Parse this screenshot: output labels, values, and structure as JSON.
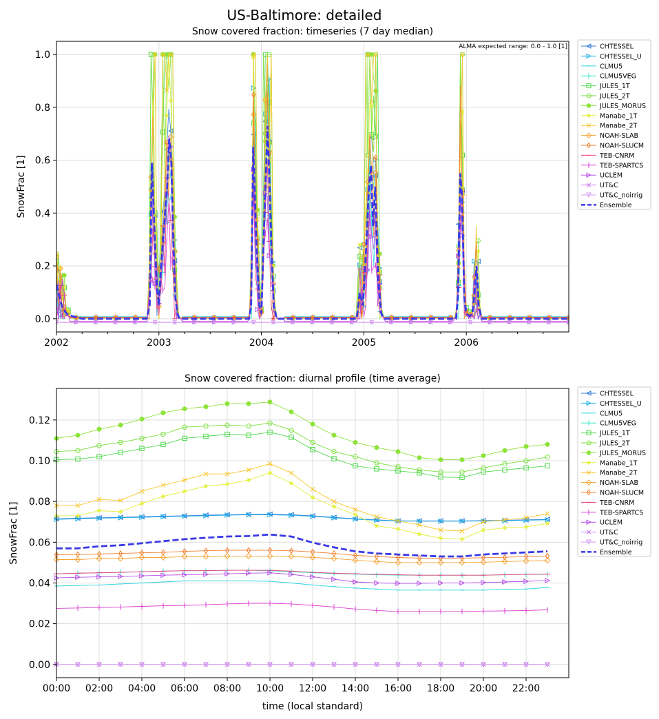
{
  "suptitle": "US-Baltimore: detailed",
  "legend_entries": [
    {
      "name": "CHTESSEL",
      "color": "#2f7ad8",
      "marker": "tri-left"
    },
    {
      "name": "CHTESSEL_U",
      "color": "#1fb0e6",
      "marker": "tri-right"
    },
    {
      "name": "CLMU5",
      "color": "#27d3e0",
      "marker": "dash"
    },
    {
      "name": "CLMU5VEG",
      "color": "#33e7c9",
      "marker": "vline"
    },
    {
      "name": "JULES_1T",
      "color": "#4bd84a",
      "marker": "square"
    },
    {
      "name": "JULES_2T",
      "color": "#79df3c",
      "marker": "circle"
    },
    {
      "name": "JULES_MORUS",
      "color": "#8ee33a",
      "marker": "hexagon"
    },
    {
      "name": "Manabe_1T",
      "color": "#e4ef3a",
      "marker": "star"
    },
    {
      "name": "Manabe_2T",
      "color": "#f8c629",
      "marker": "x"
    },
    {
      "name": "NOAH-SLAB",
      "color": "#f5a535",
      "marker": "diamond"
    },
    {
      "name": "NOAH-SLUCM",
      "color": "#f07f2e",
      "marker": "thin-diamond"
    },
    {
      "name": "TEB-CNRM",
      "color": "#e83c7a",
      "marker": "hline"
    },
    {
      "name": "TEB-SPARTCS",
      "color": "#d83ccf",
      "marker": "vline"
    },
    {
      "name": "UCLEM",
      "color": "#b550e8",
      "marker": "tri-right"
    },
    {
      "name": "UT&C",
      "color": "#c87de8",
      "marker": "x"
    },
    {
      "name": "UT&C_noirrig",
      "color": "#d49af0",
      "marker": "tri-down"
    },
    {
      "name": "Ensemble",
      "color": "#3a3ae6",
      "marker": "none"
    }
  ],
  "chart_data": [
    {
      "type": "line",
      "title": "Snow covered fraction: timeseries (7 day median)",
      "annotation": "ALMA expected range: 0.0 - 1.0 [1]",
      "xlabel": "",
      "ylabel": "SnowFrac [1]",
      "xlim": [
        2002.0,
        2007.0
      ],
      "ylim": [
        -0.05,
        1.05
      ],
      "xticks": [
        2002,
        2003,
        2004,
        2005,
        2006
      ],
      "xtick_labels": [
        "2002",
        "2003",
        "2004",
        "2005",
        "2006"
      ],
      "yticks": [
        0.0,
        0.2,
        0.4,
        0.6,
        0.8,
        1.0
      ],
      "ytick_labels": [
        "0.0",
        "0.2",
        "0.4",
        "0.6",
        "0.8",
        "1.0"
      ],
      "grid": true,
      "legend_position": "outside-right",
      "ensemble_x": [
        2002.0,
        2002.03,
        2002.06,
        2002.1,
        2002.15,
        2002.25,
        2002.5,
        2002.8,
        2002.88,
        2002.91,
        2002.93,
        2002.95,
        2002.98,
        2003.0,
        2003.02,
        2003.05,
        2003.08,
        2003.1,
        2003.12,
        2003.14,
        2003.16,
        2003.18,
        2003.2,
        2003.25,
        2003.3,
        2003.5,
        2003.8,
        2003.88,
        2003.9,
        2003.92,
        2003.95,
        2003.98,
        2004.0,
        2004.03,
        2004.06,
        2004.08,
        2004.1,
        2004.12,
        2004.15,
        2004.2,
        2004.3,
        2004.5,
        2004.8,
        2004.93,
        2004.96,
        2004.99,
        2005.02,
        2005.05,
        2005.07,
        2005.09,
        2005.11,
        2005.14,
        2005.17,
        2005.2,
        2005.3,
        2005.6,
        2005.85,
        2005.9,
        2005.92,
        2005.94,
        2005.96,
        2005.98,
        2006.0,
        2006.03,
        2006.06,
        2006.08,
        2006.1,
        2006.12,
        2006.15,
        2006.2,
        2006.5,
        2007.0
      ],
      "ensemble_y": [
        0.13,
        0.08,
        0.04,
        0.02,
        0.01,
        0.0,
        0.0,
        0.0,
        0.0,
        0.05,
        0.59,
        0.4,
        0.12,
        0.05,
        0.2,
        0.35,
        0.5,
        0.68,
        0.6,
        0.3,
        0.08,
        0.02,
        0.0,
        0.0,
        0.0,
        0.0,
        0.0,
        0.0,
        0.05,
        0.65,
        0.3,
        0.05,
        0.02,
        0.4,
        0.73,
        0.5,
        0.25,
        0.05,
        0.0,
        0.0,
        0.0,
        0.0,
        0.0,
        0.0,
        0.1,
        0.05,
        0.25,
        0.5,
        0.58,
        0.35,
        0.5,
        0.15,
        0.02,
        0.0,
        0.0,
        0.0,
        0.0,
        0.0,
        0.1,
        0.55,
        0.45,
        0.08,
        0.02,
        0.01,
        0.02,
        0.1,
        0.2,
        0.05,
        0.0,
        0.0,
        0.0,
        0.0
      ]
    },
    {
      "type": "line",
      "title": "Snow covered fraction: diurnal profile (time average)",
      "xlabel": "time (local standard)",
      "ylabel": "SnowFrac [1]",
      "xlim": [
        0,
        24
      ],
      "ylim": [
        -0.0065,
        0.1355
      ],
      "xticks": [
        0,
        2,
        4,
        6,
        8,
        10,
        12,
        14,
        16,
        18,
        20,
        22
      ],
      "xtick_labels": [
        "00:00",
        "02:00",
        "04:00",
        "06:00",
        "08:00",
        "10:00",
        "12:00",
        "14:00",
        "16:00",
        "18:00",
        "20:00",
        "22:00"
      ],
      "yticks": [
        0.0,
        0.02,
        0.04,
        0.06,
        0.08,
        0.1,
        0.12
      ],
      "ytick_labels": [
        "0.00",
        "0.02",
        "0.04",
        "0.06",
        "0.08",
        "0.10",
        "0.12"
      ],
      "grid": true,
      "legend_position": "outside-right",
      "x": [
        0,
        1,
        2,
        3,
        4,
        5,
        6,
        7,
        8,
        9,
        10,
        11,
        12,
        13,
        14,
        15,
        16,
        17,
        18,
        19,
        20,
        21,
        22,
        23
      ],
      "series": [
        {
          "name": "CHTESSEL",
          "values": [
            0.0715,
            0.0718,
            0.072,
            0.0722,
            0.0725,
            0.0728,
            0.073,
            0.0733,
            0.0735,
            0.0737,
            0.0738,
            0.0735,
            0.073,
            0.0722,
            0.0715,
            0.071,
            0.0705,
            0.0705,
            0.0705,
            0.0705,
            0.0706,
            0.0708,
            0.071,
            0.0712
          ]
        },
        {
          "name": "CHTESSEL_U",
          "values": [
            0.0712,
            0.0715,
            0.0718,
            0.072,
            0.0722,
            0.0725,
            0.0728,
            0.073,
            0.0733,
            0.0735,
            0.0735,
            0.0732,
            0.0727,
            0.072,
            0.0713,
            0.0708,
            0.0704,
            0.0703,
            0.0703,
            0.0703,
            0.0704,
            0.0706,
            0.0708,
            0.071
          ]
        },
        {
          "name": "CLMU5",
          "values": [
            0.0385,
            0.0388,
            0.039,
            0.0395,
            0.04,
            0.0405,
            0.041,
            0.041,
            0.041,
            0.041,
            0.0408,
            0.04,
            0.039,
            0.0382,
            0.0375,
            0.037,
            0.0365,
            0.0365,
            0.0365,
            0.0365,
            0.0365,
            0.0368,
            0.037,
            0.0378
          ]
        },
        {
          "name": "CLMU5VEG",
          "values": [
            0.0445,
            0.0448,
            0.045,
            0.0452,
            0.0455,
            0.0458,
            0.046,
            0.046,
            0.0462,
            0.0462,
            0.046,
            0.0455,
            0.045,
            0.0446,
            0.0443,
            0.044,
            0.0438,
            0.0438,
            0.0438,
            0.0438,
            0.0438,
            0.044,
            0.0442,
            0.0444
          ]
        },
        {
          "name": "JULES_1T",
          "values": [
            0.1005,
            0.1008,
            0.102,
            0.104,
            0.106,
            0.108,
            0.111,
            0.112,
            0.113,
            0.1125,
            0.114,
            0.1115,
            0.1055,
            0.101,
            0.0975,
            0.096,
            0.095,
            0.094,
            0.092,
            0.0918,
            0.0945,
            0.0955,
            0.0965,
            0.0975
          ]
        },
        {
          "name": "JULES_2T",
          "values": [
            0.1045,
            0.105,
            0.1075,
            0.109,
            0.111,
            0.113,
            0.1165,
            0.117,
            0.1175,
            0.117,
            0.1185,
            0.115,
            0.109,
            0.1045,
            0.102,
            0.099,
            0.097,
            0.0955,
            0.0945,
            0.0945,
            0.0965,
            0.0985,
            0.1,
            0.1018
          ]
        },
        {
          "name": "JULES_MORUS",
          "values": [
            0.111,
            0.1125,
            0.1155,
            0.1175,
            0.1205,
            0.1235,
            0.1255,
            0.1265,
            0.128,
            0.128,
            0.1288,
            0.124,
            0.118,
            0.1125,
            0.109,
            0.1065,
            0.1045,
            0.1015,
            0.1005,
            0.1005,
            0.1025,
            0.105,
            0.107,
            0.108
          ]
        },
        {
          "name": "Manabe_1T",
          "values": [
            0.073,
            0.073,
            0.0755,
            0.075,
            0.079,
            0.0825,
            0.085,
            0.0875,
            0.0885,
            0.0905,
            0.094,
            0.089,
            0.082,
            0.0775,
            0.0735,
            0.068,
            0.0665,
            0.064,
            0.062,
            0.0615,
            0.066,
            0.067,
            0.0675,
            0.0692
          ]
        },
        {
          "name": "Manabe_2T",
          "values": [
            0.078,
            0.078,
            0.081,
            0.0805,
            0.085,
            0.088,
            0.0905,
            0.0935,
            0.0935,
            0.0955,
            0.0985,
            0.094,
            0.086,
            0.08,
            0.076,
            0.0725,
            0.0705,
            0.0685,
            0.066,
            0.0655,
            0.07,
            0.071,
            0.072,
            0.074
          ]
        },
        {
          "name": "NOAH-SLAB",
          "values": [
            0.0515,
            0.0515,
            0.052,
            0.052,
            0.0525,
            0.0525,
            0.053,
            0.053,
            0.0532,
            0.0532,
            0.0532,
            0.053,
            0.0525,
            0.052,
            0.0512,
            0.0505,
            0.05,
            0.05,
            0.05,
            0.05,
            0.0502,
            0.0505,
            0.0508,
            0.051
          ]
        },
        {
          "name": "NOAH-SLUCM",
          "values": [
            0.0538,
            0.054,
            0.0542,
            0.0545,
            0.0548,
            0.055,
            0.0555,
            0.0558,
            0.056,
            0.056,
            0.056,
            0.0558,
            0.0552,
            0.0545,
            0.0535,
            0.053,
            0.0525,
            0.0522,
            0.0522,
            0.0522,
            0.0524,
            0.0526,
            0.053,
            0.0532
          ]
        },
        {
          "name": "TEB-CNRM",
          "values": [
            0.0445,
            0.0448,
            0.045,
            0.0452,
            0.0455,
            0.0458,
            0.046,
            0.046,
            0.0462,
            0.0462,
            0.0462,
            0.0458,
            0.0452,
            0.0448,
            0.0445,
            0.0442,
            0.044,
            0.0438,
            0.0438,
            0.0438,
            0.0438,
            0.044,
            0.0442,
            0.0443
          ]
        },
        {
          "name": "TEB-SPARTCS",
          "values": [
            0.0275,
            0.0277,
            0.028,
            0.0282,
            0.0285,
            0.0288,
            0.029,
            0.0293,
            0.0297,
            0.03,
            0.03,
            0.0297,
            0.029,
            0.0282,
            0.0272,
            0.0265,
            0.026,
            0.026,
            0.026,
            0.026,
            0.0262,
            0.0263,
            0.0265,
            0.0268
          ]
        },
        {
          "name": "UCLEM",
          "values": [
            0.0425,
            0.0428,
            0.043,
            0.0432,
            0.0435,
            0.0438,
            0.044,
            0.0442,
            0.0445,
            0.0448,
            0.045,
            0.0442,
            0.043,
            0.0418,
            0.0405,
            0.04,
            0.0398,
            0.0398,
            0.04,
            0.04,
            0.0402,
            0.0405,
            0.0408,
            0.0412
          ]
        },
        {
          "name": "UT&C",
          "values": [
            0.0,
            0.0,
            0.0,
            0.0,
            0.0,
            0.0,
            0.0,
            0.0,
            0.0,
            0.0,
            0.0,
            0.0,
            0.0,
            0.0,
            0.0,
            0.0,
            0.0,
            0.0,
            0.0,
            0.0,
            0.0,
            0.0,
            0.0,
            0.0
          ]
        },
        {
          "name": "UT&C_noirrig",
          "values": [
            0.0,
            0.0,
            0.0,
            0.0,
            0.0,
            0.0,
            0.0,
            0.0,
            0.0,
            0.0,
            0.0,
            0.0,
            0.0,
            0.0,
            0.0,
            0.0,
            0.0,
            0.0,
            0.0,
            0.0,
            0.0,
            0.0,
            0.0,
            0.0
          ]
        },
        {
          "name": "Ensemble",
          "values": [
            0.057,
            0.057,
            0.058,
            0.0585,
            0.0595,
            0.0605,
            0.0615,
            0.0622,
            0.0628,
            0.063,
            0.0638,
            0.0628,
            0.0598,
            0.0575,
            0.0555,
            0.0545,
            0.054,
            0.0535,
            0.053,
            0.053,
            0.054,
            0.0545,
            0.055,
            0.0555
          ]
        }
      ]
    }
  ]
}
